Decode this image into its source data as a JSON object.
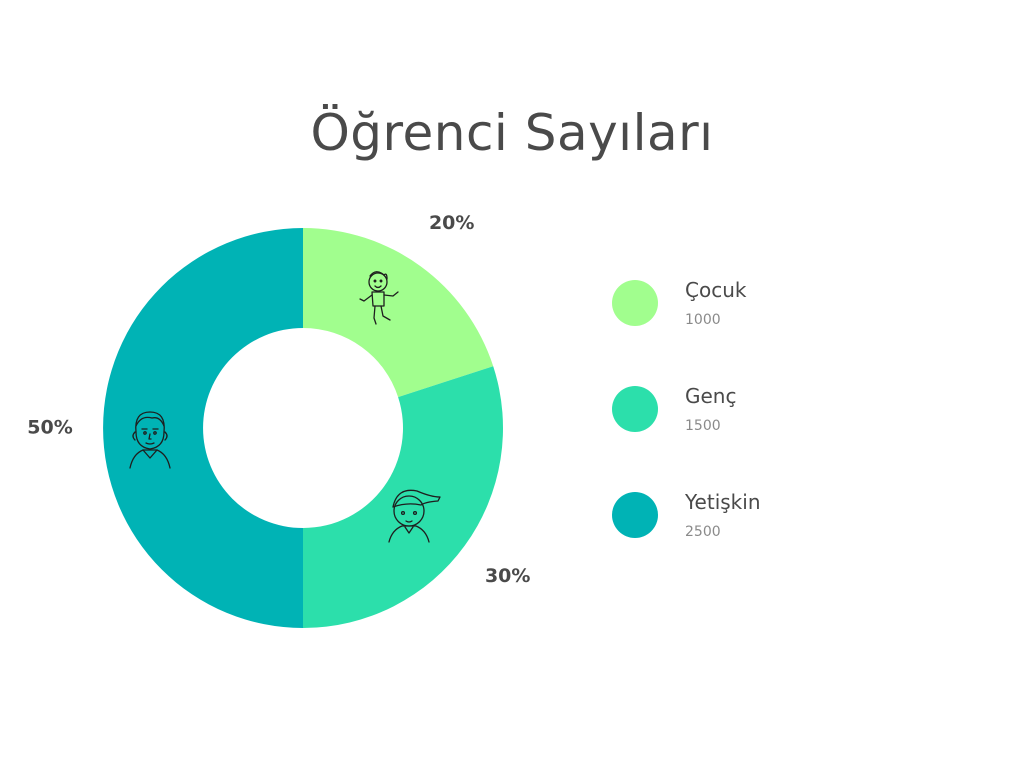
{
  "title": "Öğrenci Sayıları",
  "chart_data": {
    "type": "pie",
    "title": "Öğrenci Sayıları",
    "donut": true,
    "legend": "right",
    "series": [
      {
        "name": "Çocuk",
        "value": 1000,
        "percent_label": "20%",
        "color": "#a1fe8e",
        "icon": "child-figure-icon"
      },
      {
        "name": "Genç",
        "value": 1500,
        "percent_label": "30%",
        "color": "#2cdfab",
        "icon": "teen-cap-icon"
      },
      {
        "name": "Yetişkin",
        "value": 2500,
        "percent_label": "50%",
        "color": "#00b3b5",
        "icon": "adult-man-icon"
      }
    ]
  },
  "legend_items": [
    {
      "label": "Çocuk",
      "value": "1000",
      "color": "#a1fe8e"
    },
    {
      "label": "Genç",
      "value": "1500",
      "color": "#2cdfab"
    },
    {
      "label": "Yetişkin",
      "value": "2500",
      "color": "#00b3b5"
    }
  ]
}
